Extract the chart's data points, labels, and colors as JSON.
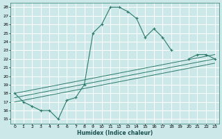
{
  "title": "",
  "xlabel": "Humidex (Indice chaleur)",
  "bg_color": "#cce8e8",
  "grid_color": "#ffffff",
  "line_color": "#2a7a6a",
  "xlim": [
    -0.5,
    23.5
  ],
  "ylim": [
    14.5,
    28.5
  ],
  "xticks": [
    0,
    1,
    2,
    3,
    4,
    5,
    6,
    7,
    8,
    9,
    10,
    11,
    12,
    13,
    14,
    15,
    16,
    17,
    18,
    19,
    20,
    21,
    22,
    23
  ],
  "yticks": [
    15,
    16,
    17,
    18,
    19,
    20,
    21,
    22,
    23,
    24,
    25,
    26,
    27,
    28
  ],
  "main_curve_x": [
    0,
    1,
    2,
    3,
    4,
    5,
    6,
    7,
    8,
    9,
    10,
    11,
    12,
    13,
    14,
    15,
    16,
    17,
    18,
    19,
    20,
    21,
    22,
    23
  ],
  "main_curve_y": [
    18.0,
    17.0,
    16.5,
    16.0,
    16.0,
    15.0,
    17.2,
    17.5,
    19.0,
    25.0,
    26.0,
    28.0,
    28.0,
    27.5,
    26.7,
    24.5,
    25.5,
    24.5,
    23.0,
    null,
    22.0,
    22.5,
    22.5,
    22.0
  ],
  "reg_line1_x": [
    0,
    23
  ],
  "reg_line1_y": [
    18.0,
    22.5
  ],
  "reg_line2_x": [
    0,
    23
  ],
  "reg_line2_y": [
    17.5,
    22.0
  ],
  "reg_line3_x": [
    0,
    23
  ],
  "reg_line3_y": [
    17.0,
    21.5
  ]
}
